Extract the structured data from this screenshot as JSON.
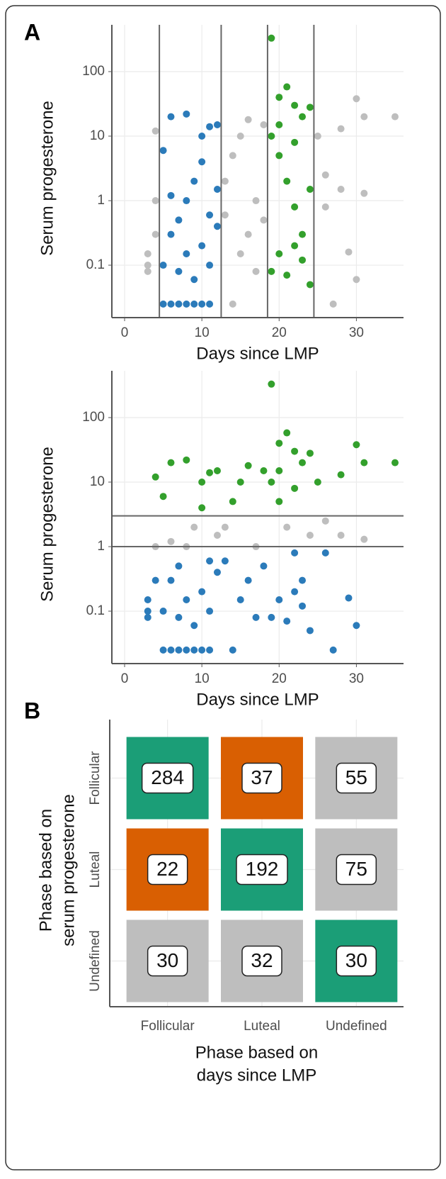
{
  "chart_data": [
    {
      "type": "scatter",
      "panel_label": "A",
      "xlabel": "Days since LMP",
      "ylabel": "Serum progesterone",
      "xlim": [
        -1.65,
        36.1
      ],
      "xticks": [
        0,
        10,
        20,
        30
      ],
      "ylim": [
        0.0154,
        531
      ],
      "yticks": [
        0.1,
        1,
        10,
        100
      ],
      "log_y": true,
      "grid": true,
      "vlines": [
        4.5,
        12.5,
        18.5,
        24.5
      ],
      "series": [
        {
          "color": "#bebebe",
          "x": [
            3,
            3,
            4,
            4,
            4,
            3,
            13,
            14,
            14,
            15,
            16,
            16,
            17,
            17,
            18,
            18,
            25,
            26,
            27,
            28,
            29,
            30,
            30,
            31,
            31,
            35,
            26,
            28,
            13,
            15
          ],
          "values": [
            0.1,
            0.08,
            0.3,
            1,
            12,
            0.15,
            2,
            0.025,
            5,
            10,
            0.3,
            18,
            0.08,
            1,
            15,
            0.5,
            10,
            0.8,
            0.025,
            13,
            0.16,
            38,
            0.06,
            20,
            1.3,
            20,
            2.5,
            1.5,
            0.6,
            0.15
          ]
        },
        {
          "color": "#2b7bba",
          "x": [
            5,
            6,
            7,
            8,
            9,
            10,
            11,
            5,
            6,
            7,
            8,
            9,
            10,
            11,
            12,
            5,
            6,
            8,
            10,
            11,
            12,
            7,
            9,
            6,
            8,
            12,
            10,
            11
          ],
          "values": [
            0.025,
            0.025,
            0.025,
            0.025,
            0.025,
            0.025,
            0.025,
            0.1,
            0.3,
            0.5,
            1,
            2,
            0.2,
            0.6,
            1.5,
            6,
            20,
            22,
            10,
            14,
            15,
            0.08,
            0.06,
            1.2,
            0.15,
            0.4,
            4,
            0.1
          ]
        },
        {
          "color": "#33a02c",
          "x": [
            19,
            21,
            20,
            22,
            23,
            24,
            19,
            20,
            21,
            22,
            23,
            24,
            19,
            20,
            21,
            22,
            23,
            24,
            20,
            22
          ],
          "values": [
            330,
            58,
            40,
            30,
            20,
            28,
            10,
            5,
            2,
            0.8,
            0.3,
            0.05,
            0.08,
            0.15,
            0.07,
            0.2,
            0.12,
            1.5,
            15,
            8
          ]
        }
      ]
    },
    {
      "type": "scatter",
      "xlabel": "Days since LMP",
      "ylabel": "Serum progesterone",
      "xlim": [
        -1.65,
        36.1
      ],
      "xticks": [
        0,
        10,
        20,
        30
      ],
      "ylim": [
        0.0154,
        531
      ],
      "yticks": [
        0.1,
        1,
        10,
        100
      ],
      "log_y": true,
      "grid": true,
      "hlines": [
        1,
        3
      ],
      "series": [
        {
          "color": "#bebebe",
          "x": [
            8,
            9,
            12,
            6,
            21,
            24,
            4,
            13,
            17,
            31,
            28,
            26
          ],
          "values": [
            1,
            2,
            1.5,
            1.2,
            2,
            1.5,
            1,
            2,
            1,
            1.3,
            1.5,
            2.5
          ]
        },
        {
          "color": "#2b7bba",
          "x": [
            5,
            6,
            7,
            8,
            9,
            10,
            11,
            5,
            6,
            7,
            10,
            11,
            7,
            9,
            8,
            12,
            11,
            22,
            23,
            24,
            19,
            20,
            21,
            22,
            23,
            3,
            3,
            4,
            3,
            14,
            16,
            17,
            18,
            26,
            27,
            29,
            30,
            13,
            15
          ],
          "values": [
            0.025,
            0.025,
            0.025,
            0.025,
            0.025,
            0.025,
            0.025,
            0.1,
            0.3,
            0.5,
            0.2,
            0.6,
            0.08,
            0.06,
            0.15,
            0.4,
            0.1,
            0.8,
            0.3,
            0.05,
            0.08,
            0.15,
            0.07,
            0.2,
            0.12,
            0.1,
            0.08,
            0.3,
            0.15,
            0.025,
            0.3,
            0.08,
            0.5,
            0.8,
            0.025,
            0.16,
            0.06,
            0.6,
            0.15
          ]
        },
        {
          "color": "#33a02c",
          "x": [
            5,
            6,
            8,
            10,
            11,
            12,
            10,
            19,
            21,
            20,
            22,
            23,
            24,
            19,
            20,
            20,
            22,
            4,
            14,
            15,
            16,
            18,
            25,
            28,
            30,
            31,
            35
          ],
          "values": [
            6,
            20,
            22,
            10,
            14,
            15,
            4,
            330,
            58,
            40,
            30,
            20,
            28,
            10,
            5,
            15,
            8,
            12,
            5,
            10,
            18,
            15,
            10,
            13,
            38,
            20,
            20
          ]
        }
      ]
    },
    {
      "type": "heatmap",
      "panel_label": "B",
      "xlabel": [
        "Phase based on",
        "days since LMP"
      ],
      "ylabel": [
        "Phase based on",
        "serum progesterone"
      ],
      "x_categories": [
        "Follicular",
        "Luteal",
        "Undefined"
      ],
      "y_categories": [
        "Follicular",
        "Luteal",
        "Undefined"
      ],
      "values": [
        [
          284,
          37,
          55
        ],
        [
          22,
          192,
          75
        ],
        [
          30,
          32,
          30
        ]
      ],
      "colors": [
        [
          "#1b9e77",
          "#d95f02",
          "#bebebe"
        ],
        [
          "#d95f02",
          "#1b9e77",
          "#bebebe"
        ],
        [
          "#bebebe",
          "#bebebe",
          "#1b9e77"
        ]
      ]
    }
  ]
}
